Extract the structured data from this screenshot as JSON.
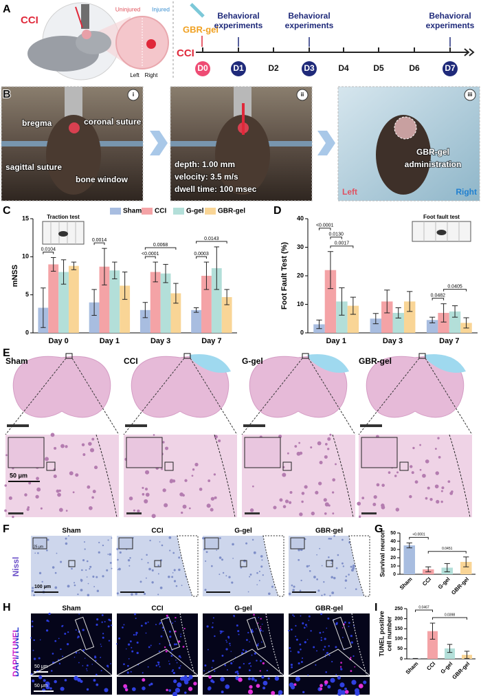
{
  "panel_a": {
    "label": "A",
    "cci": "CCI",
    "uninjured": "Uninjured",
    "injured": "Injured",
    "left": "Left",
    "right": "Right",
    "gel": "GBR-gel",
    "behavioral": [
      [
        "Behavioral",
        "experiments"
      ],
      [
        "Behavioral",
        "experiments"
      ],
      [
        "Behavioral",
        "experiments"
      ]
    ],
    "timeline_label": "CCI",
    "days": [
      "D0",
      "D1",
      "D2",
      "D3",
      "D4",
      "D5",
      "D6",
      "D7"
    ]
  },
  "panel_b": {
    "label": "B",
    "numerals": [
      "i",
      "ii",
      "iii"
    ],
    "bregma": "bregma",
    "coronal": "coronal suture",
    "sagittal": "sagittal suture",
    "window": "bone window",
    "settings": [
      "depth: 1.00 mm",
      "velocity: 3.5 m/s",
      "dwell time: 100 msec"
    ],
    "administration": [
      "GBR-gel",
      "administration"
    ],
    "left": "Left",
    "right": "Right"
  },
  "panel_e": {
    "label": "E",
    "groups": [
      "Sham",
      "CCI",
      "G-gel",
      "GBR-gel"
    ],
    "scale": "50 μm"
  },
  "panel_f": {
    "label": "F",
    "stain": "Nissl",
    "groups": [
      "Sham",
      "CCI",
      "G-gel",
      "GBR-gel"
    ],
    "inset_scale": "25 μm",
    "scale": "100 μm"
  },
  "panel_h": {
    "label": "H",
    "stain": "DAPI/TUNEL",
    "groups": [
      "Sham",
      "CCI",
      "G-gel",
      "GBR-gel"
    ],
    "scales": [
      "50 μm",
      "50 μm"
    ]
  },
  "chart_data": [
    {
      "type": "bar",
      "panel": "C",
      "y_label": "mNSS",
      "inset_label": "Traction test",
      "legend": true,
      "categories": [
        "Day 0",
        "Day 1",
        "Day 3",
        "Day 7"
      ],
      "series": [
        {
          "name": "Sham",
          "color": "#a8bde0",
          "values": [
            3.3,
            4,
            3,
            3
          ],
          "errors": [
            2.6,
            1.7,
            1,
            0.3
          ]
        },
        {
          "name": "CCI",
          "color": "#f4a3a6",
          "values": [
            9,
            8.7,
            8,
            7.5
          ],
          "errors": [
            0.9,
            2.4,
            1.3,
            1.8
          ]
        },
        {
          "name": "G-gel",
          "color": "#b3dfd9",
          "values": [
            8,
            8.2,
            7.8,
            8.5
          ],
          "errors": [
            1.6,
            1.1,
            1.2,
            2.8
          ]
        },
        {
          "name": "GBR-gel",
          "color": "#f9d596",
          "values": [
            8.8,
            6.2,
            5.2,
            4.7
          ],
          "errors": [
            0.5,
            1.8,
            1.3,
            1
          ]
        }
      ],
      "ylim": [
        0,
        15
      ],
      "yticks": [
        0,
        5,
        10,
        15
      ],
      "annotations": [
        {
          "text": "0.0104",
          "category": "Day 0",
          "between": [
            "Sham",
            "CCI"
          ]
        },
        {
          "text": "0.0014",
          "category": "Day 1",
          "between": [
            "Sham",
            "CCI"
          ]
        },
        {
          "text": "<0.0001",
          "category": "Day 3",
          "between": [
            "Sham",
            "CCI"
          ]
        },
        {
          "text": "0.0068",
          "category": "Day 3",
          "between": [
            "Sham",
            "GBR-gel"
          ]
        },
        {
          "text": "0.0003",
          "category": "Day 7",
          "between": [
            "Sham",
            "CCI"
          ]
        },
        {
          "text": "0.0143",
          "category": "Day 7",
          "between": [
            "Sham",
            "GBR-gel"
          ]
        }
      ]
    },
    {
      "type": "bar",
      "panel": "D",
      "y_label": "Foot Fault Test (%)",
      "inset_label": "Foot fault test",
      "categories": [
        "Day 1",
        "Day 3",
        "Day 7"
      ],
      "series": [
        {
          "name": "Sham",
          "color": "#a8bde0",
          "values": [
            3,
            5,
            4.5
          ],
          "errors": [
            1.5,
            1.8,
            1
          ]
        },
        {
          "name": "CCI",
          "color": "#f4a3a6",
          "values": [
            22,
            11,
            7
          ],
          "errors": [
            6.5,
            4,
            3.2
          ]
        },
        {
          "name": "G-gel",
          "color": "#b3dfd9",
          "values": [
            11,
            7,
            7.5
          ],
          "errors": [
            4.8,
            1.8,
            2
          ]
        },
        {
          "name": "GBR-gel",
          "color": "#f9d596",
          "values": [
            9.5,
            11,
            3.5
          ],
          "errors": [
            3,
            3.5,
            1.8
          ]
        }
      ],
      "ylim": [
        0,
        40
      ],
      "yticks": [
        0,
        10,
        20,
        30,
        40
      ],
      "annotations": [
        {
          "text": "0.0017",
          "category": "Day 1",
          "between": [
            "CCI",
            "GBR-gel"
          ]
        },
        {
          "text": "0.0130",
          "category": "Day 1",
          "between": [
            "CCI",
            "G-gel"
          ]
        },
        {
          "text": "<0.0001",
          "category": "Day 1",
          "between": [
            "Sham",
            "CCI"
          ]
        },
        {
          "text": "0.0482",
          "category": "Day 7",
          "between": [
            "Sham",
            "CCI"
          ]
        },
        {
          "text": "0.0405",
          "category": "Day 7",
          "between": [
            "CCI",
            "GBR-gel"
          ]
        }
      ]
    },
    {
      "type": "bar",
      "panel": "G",
      "y_label": "Survival neuron",
      "categories": [
        "Sham",
        "CCI",
        "G-gel",
        "GBR-gel"
      ],
      "values": [
        35,
        6,
        8,
        15
      ],
      "errors": [
        3,
        3,
        5,
        6
      ],
      "colors": [
        "#a8bde0",
        "#f4a3a6",
        "#b3dfd9",
        "#f9d596"
      ],
      "ylim": [
        0,
        50
      ],
      "yticks": [
        0,
        10,
        20,
        30,
        40,
        50
      ],
      "annotations": [
        {
          "text": "<0.0001",
          "between": [
            "Sham",
            "CCI"
          ]
        },
        {
          "text": "0.0451",
          "between": [
            "CCI",
            "GBR-gel"
          ]
        }
      ]
    },
    {
      "type": "bar",
      "panel": "I",
      "y_label": [
        "TUNEL positive",
        "cell number"
      ],
      "categories": [
        "Sham",
        "CCI",
        "G-gel",
        "GBR-gel"
      ],
      "values": [
        1,
        138,
        52,
        20
      ],
      "errors": [
        1,
        40,
        20,
        18
      ],
      "colors": [
        "#a8bde0",
        "#f4a3a6",
        "#b3dfd9",
        "#f9d596"
      ],
      "ylim": [
        0,
        250
      ],
      "yticks": [
        0,
        50,
        100,
        150,
        200,
        250
      ],
      "annotations": [
        {
          "text": "0.0398",
          "between": [
            "CCI",
            "GBR-gel"
          ]
        },
        {
          "text": "0.0467",
          "between": [
            "Sham",
            "CCI"
          ]
        }
      ]
    }
  ]
}
